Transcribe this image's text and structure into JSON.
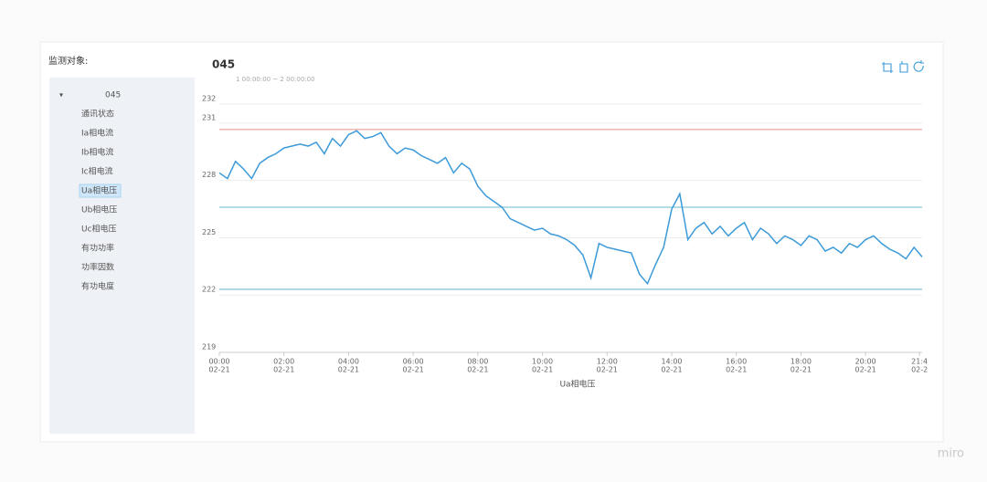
{
  "sidebar": {
    "label": "监测对象:",
    "tree": {
      "root": "045",
      "items": [
        "通讯状态",
        "Ia相电流",
        "Ib相电流",
        "Ic相电流",
        "Ua相电压",
        "Ub相电压",
        "Uc相电压",
        "有功功率",
        "功率因数",
        "有功电度"
      ],
      "selected": 4
    }
  },
  "chart_data": {
    "type": "line",
    "title": "045",
    "subtitle": "1 00:00:00 ~ 2 00:00:00",
    "x_label": "Ua相电压",
    "x": [
      0,
      0.25,
      0.5,
      0.75,
      1,
      1.25,
      1.5,
      1.75,
      2,
      2.25,
      2.5,
      2.75,
      3,
      3.25,
      3.5,
      3.75,
      4,
      4.25,
      4.5,
      4.75,
      5,
      5.25,
      5.5,
      5.75,
      6,
      6.25,
      6.5,
      6.75,
      7,
      7.25,
      7.5,
      7.75,
      8,
      8.25,
      8.5,
      8.75,
      9,
      9.25,
      9.5,
      9.75,
      10,
      10.25,
      10.5,
      10.75,
      11,
      11.25,
      11.5,
      11.75,
      12,
      12.25,
      12.5,
      12.75,
      13,
      13.25,
      13.5,
      13.75,
      14,
      14.25,
      14.5,
      14.75,
      15,
      15.25,
      15.5,
      15.75,
      16,
      16.25,
      16.5,
      16.75,
      17,
      17.25,
      17.5,
      17.75,
      18,
      18.25,
      18.5,
      18.75,
      19,
      19.25,
      19.5,
      19.75,
      20,
      20.25,
      20.5,
      20.75,
      21,
      21.25,
      21.5,
      21.75
    ],
    "series": [
      {
        "name": "Ua相电压",
        "color": "#3c9ad8",
        "values": [
          228.4,
          228.1,
          229.0,
          228.6,
          228.1,
          228.9,
          229.2,
          229.4,
          229.7,
          229.8,
          229.9,
          229.8,
          230.0,
          229.4,
          230.2,
          229.8,
          230.4,
          230.6,
          230.2,
          230.3,
          230.5,
          229.8,
          229.4,
          229.7,
          229.6,
          229.3,
          229.1,
          228.9,
          229.2,
          228.4,
          228.9,
          228.6,
          227.7,
          227.2,
          226.9,
          226.6,
          226.0,
          225.8,
          225.6,
          225.4,
          225.5,
          225.2,
          225.1,
          224.9,
          224.6,
          224.1,
          222.9,
          224.7,
          224.5,
          224.4,
          224.3,
          224.2,
          223.1,
          222.6,
          223.6,
          224.5,
          226.5,
          227.3,
          224.9,
          225.5,
          225.8,
          225.2,
          225.6,
          225.1,
          225.5,
          225.8,
          224.9,
          225.5,
          225.2,
          224.7,
          225.1,
          224.9,
          224.6,
          225.1,
          224.9,
          224.3,
          224.5,
          224.2,
          224.7,
          224.5,
          224.9,
          225.1,
          224.7,
          224.4,
          224.2,
          223.9,
          224.5,
          224.0
        ]
      }
    ],
    "reference_lines": [
      {
        "value": 230.67,
        "color": "#e89d96"
      },
      {
        "value": 226.6,
        "color": "#86c6d8"
      },
      {
        "value": 222.3,
        "color": "#7ab4d8"
      }
    ],
    "xlim": [
      0,
      21.75
    ],
    "xticks": [
      {
        "value": 0,
        "label": "00:00",
        "date": "02-21"
      },
      {
        "value": 2,
        "label": "02:00",
        "date": "02-21"
      },
      {
        "value": 4,
        "label": "04:00",
        "date": "02-21"
      },
      {
        "value": 6,
        "label": "06:00",
        "date": "02-21"
      },
      {
        "value": 8,
        "label": "08:00",
        "date": "02-21"
      },
      {
        "value": 10,
        "label": "10:00",
        "date": "02-21"
      },
      {
        "value": 12,
        "label": "12:00",
        "date": "02-21"
      },
      {
        "value": 14,
        "label": "14:00",
        "date": "02-21"
      },
      {
        "value": 16,
        "label": "16:00",
        "date": "02-21"
      },
      {
        "value": 18,
        "label": "18:00",
        "date": "02-21"
      },
      {
        "value": 20,
        "label": "20:00",
        "date": "02-21"
      },
      {
        "value": 21.67,
        "label": "21:4",
        "date": "02-2"
      }
    ],
    "ylim": [
      219,
      232
    ],
    "yticks": [
      219,
      222,
      225,
      228,
      231,
      232
    ],
    "grid": true
  },
  "watermark": "miro"
}
